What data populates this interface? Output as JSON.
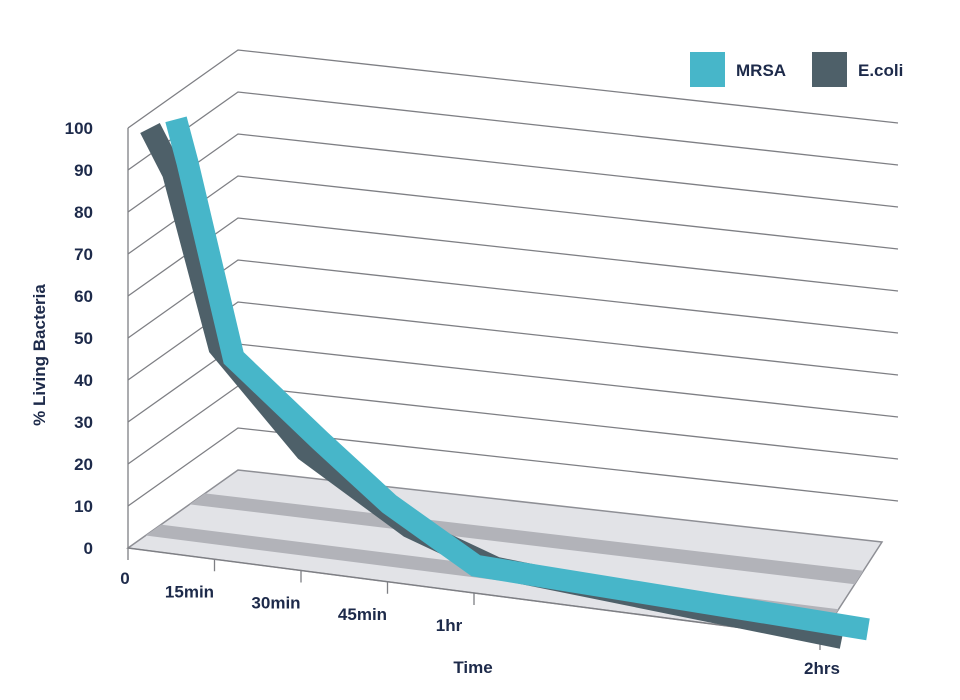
{
  "chart_data": {
    "type": "line",
    "style": "3d-ribbon",
    "categories": [
      "0",
      "15min",
      "30min",
      "45min",
      "1hr",
      "2hrs"
    ],
    "x_minutes": [
      0,
      15,
      30,
      45,
      60,
      120
    ],
    "xlabel": "Time",
    "ylabel": "% Living Bacteria",
    "yticks": [
      "0",
      "10",
      "20",
      "30",
      "40",
      "50",
      "60",
      "70",
      "80",
      "90",
      "100"
    ],
    "ylim": [
      0,
      100
    ],
    "grid": true,
    "legend_position": "top-right",
    "series": [
      {
        "name": "MRSA",
        "color": "#47b6c9",
        "points": [
          [
            0,
            100
          ],
          [
            2,
            90
          ],
          [
            10,
            45
          ],
          [
            25,
            28
          ],
          [
            37,
            15
          ],
          [
            52,
            3
          ],
          [
            120,
            0
          ]
        ]
      },
      {
        "name": "E.coli",
        "color": "#4e6069",
        "points": [
          [
            0,
            100
          ],
          [
            4,
            90
          ],
          [
            12,
            50
          ],
          [
            27,
            28
          ],
          [
            45,
            13
          ],
          [
            60,
            6
          ],
          [
            120,
            0
          ]
        ]
      }
    ]
  }
}
